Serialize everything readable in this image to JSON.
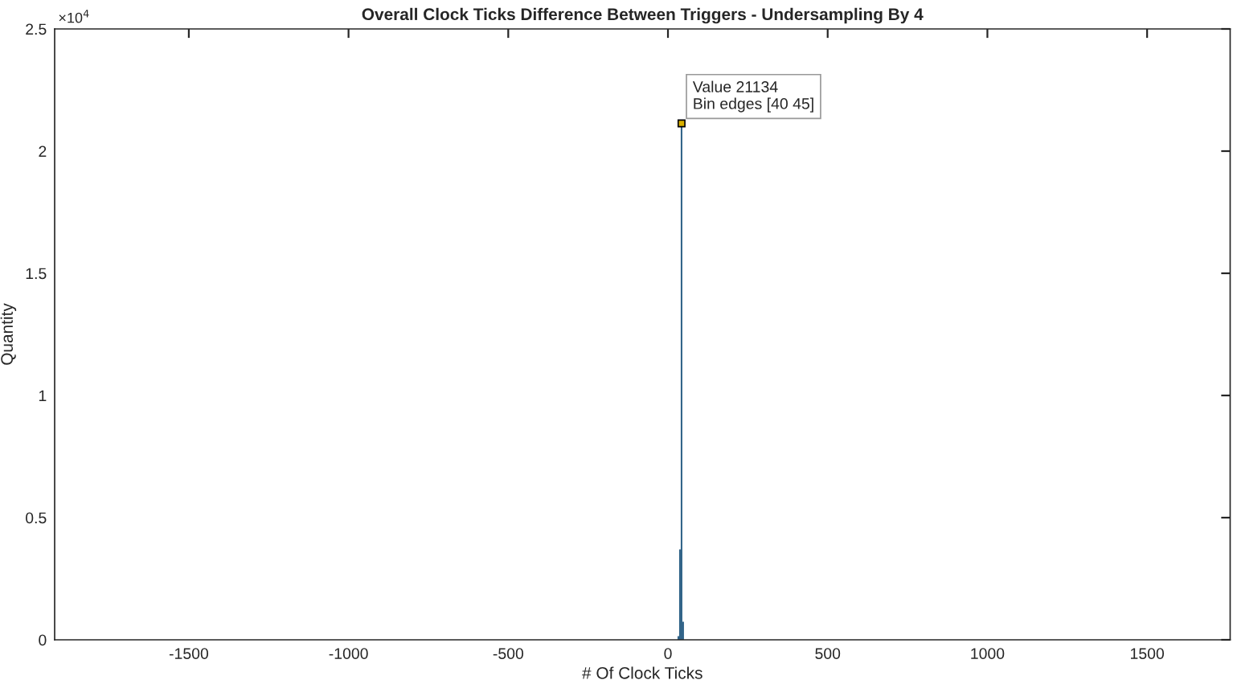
{
  "chart_data": {
    "type": "histogram",
    "title": "Overall Clock Ticks Difference Between Triggers - Undersampling By 4",
    "xlabel": "# Of Clock Ticks",
    "ylabel": "Quantity",
    "bins": [
      30,
      35,
      40,
      45,
      50
    ],
    "values": [
      0.015,
      0.37,
      2.1134,
      0.074
    ],
    "color": "#2b5f85",
    "xlim": [
      -1920,
      1760
    ],
    "xticks": [
      -1500,
      -1000,
      -500,
      0,
      500,
      1000,
      1500
    ],
    "ylim": [
      0,
      2.5
    ],
    "yticks": [
      0,
      0.5,
      1,
      1.5,
      2,
      2.5
    ],
    "annotations": [
      "×10$^{4}$",
      {
        "text": "Value 21134\nBin edges [40 45]",
        "x": 42.5,
        "y": 2.1134
      }
    ],
    "grid": false,
    "legend": false
  }
}
